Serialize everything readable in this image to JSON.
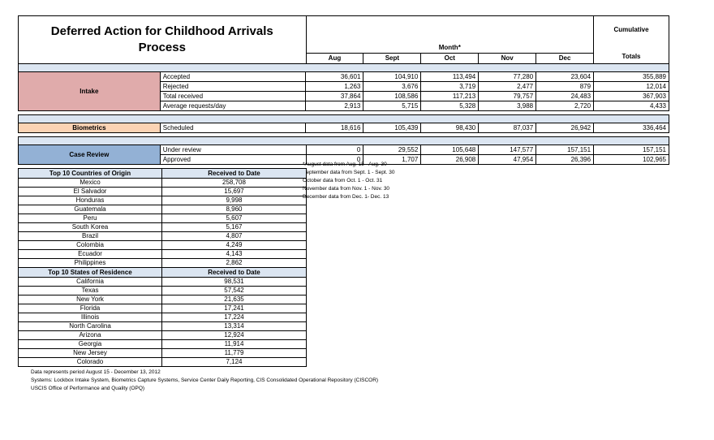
{
  "title": "Deferred Action for Childhood Arrivals Process",
  "colors": {
    "intake_row": "#e0abab",
    "biometrics_row": "#fbd3b4",
    "case_review_row": "#93b1d5",
    "separator_band": "#dbe5f1"
  },
  "main_table": {
    "month_header": "Month*",
    "months": [
      "Aug",
      "Sept",
      "Oct",
      "Nov",
      "Dec"
    ],
    "cumulative_line1": "Cumulative",
    "cumulative_line2": "Totals",
    "sections": [
      {
        "label": "Intake",
        "rows": [
          {
            "label": "Accepted",
            "values": [
              "36,601",
              "104,910",
              "113,494",
              "77,280",
              "23,604"
            ],
            "total": "355,889"
          },
          {
            "label": "Rejected",
            "values": [
              "1,263",
              "3,676",
              "3,719",
              "2,477",
              "879"
            ],
            "total": "12,014"
          },
          {
            "label": "Total received",
            "values": [
              "37,864",
              "108,586",
              "117,213",
              "79,757",
              "24,483"
            ],
            "total": "367,903"
          },
          {
            "label": "Average requests/day",
            "values": [
              "2,913",
              "5,715",
              "5,328",
              "3,988",
              "2,720"
            ],
            "total": "4,433"
          }
        ]
      },
      {
        "label": "Biometrics",
        "rows": [
          {
            "label": "Scheduled",
            "values": [
              "18,616",
              "105,439",
              "98,430",
              "87,037",
              "26,942"
            ],
            "total": "336,464"
          }
        ]
      },
      {
        "label": "Case Review",
        "rows": [
          {
            "label": "Under review",
            "values": [
              "0",
              "29,552",
              "105,648",
              "147,577",
              "157,151"
            ],
            "total": "157,151"
          },
          {
            "label": "Approved",
            "values": [
              "0",
              "1,707",
              "26,908",
              "47,954",
              "26,396"
            ],
            "total": "102,965"
          }
        ]
      }
    ]
  },
  "footnotes": [
    "*August data from Aug. 15 - Aug. 30",
    "September data from Sept. 1 - Sept. 30",
    "October data from Oct. 1 - Oct. 31",
    "November data from Nov. 1 - Nov. 30",
    "December data from Dec. 1- Dec. 13"
  ],
  "countries_table": {
    "header_label": "Top 10 Countries of Origin",
    "header_value": "Received to Date",
    "rows": [
      [
        "Mexico",
        "258,708"
      ],
      [
        "El Salvador",
        "15,697"
      ],
      [
        "Honduras",
        "9,998"
      ],
      [
        "Guatemala",
        "8,960"
      ],
      [
        "Peru",
        "5,607"
      ],
      [
        "South Korea",
        "5,167"
      ],
      [
        "Brazil",
        "4,807"
      ],
      [
        "Colombia",
        "4,249"
      ],
      [
        "Ecuador",
        "4,143"
      ],
      [
        "Philippines",
        "2,862"
      ]
    ]
  },
  "states_table": {
    "header_label": "Top 10 States of Residence",
    "header_value": "Received to Date",
    "rows": [
      [
        "California",
        "98,531"
      ],
      [
        "Texas",
        "57,542"
      ],
      [
        "New York",
        "21,635"
      ],
      [
        "Florida",
        "17,241"
      ],
      [
        "Illinois",
        "17,224"
      ],
      [
        "North Carolina",
        "13,314"
      ],
      [
        "Arizona",
        "12,924"
      ],
      [
        "Georgia",
        "11,914"
      ],
      [
        "New Jersey",
        "11,779"
      ],
      [
        "Colorado",
        "7,124"
      ]
    ]
  },
  "bottom_notes": [
    "Data represents period August 15 - December 13, 2012",
    "Systems: Lockbox Intake System, Biometrics Capture Systems, Service Center Daily Reporting, CIS Consolidated Operational Repository (CISCOR)",
    "USCIS Office of Performance and Quality (OPQ)"
  ]
}
